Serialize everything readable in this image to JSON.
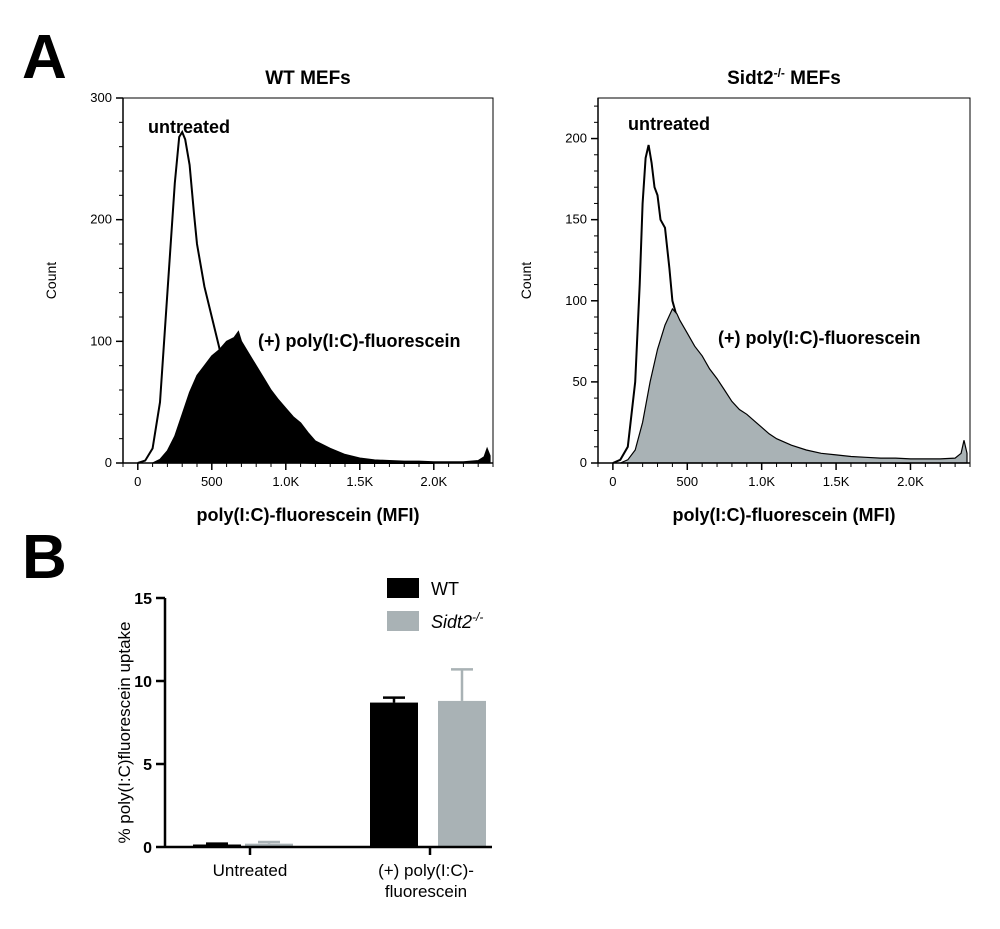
{
  "figure": {
    "panel_a_label": "A",
    "panel_b_label": "B"
  },
  "chart_data": [
    {
      "type": "area",
      "title": "WT MEFs",
      "title_sup": "",
      "xlabel": "poly(I:C)-fluorescein (MFI)",
      "ylabel": "Count",
      "xlim": [
        -100,
        2400
      ],
      "ylim": [
        0,
        300
      ],
      "x_ticks": [
        0,
        500,
        1000,
        1500,
        2000
      ],
      "x_tick_labels": [
        "0",
        "500",
        "1.0K",
        "1.5K",
        "2.0K"
      ],
      "y_ticks": [
        0,
        100,
        200,
        300
      ],
      "y_tick_labels": [
        "0",
        "100",
        "200",
        "300"
      ],
      "annotations": [
        "untreated",
        "(+) poly(I:C)-fluorescein"
      ],
      "series": [
        {
          "name": "untreated",
          "style": "outline",
          "color": "#000000",
          "x": [
            0,
            50,
            100,
            150,
            200,
            250,
            280,
            300,
            320,
            350,
            380,
            400,
            450,
            500,
            550,
            600,
            650,
            700,
            750,
            800,
            900,
            1000,
            1200,
            2000
          ],
          "y": [
            0,
            2,
            12,
            50,
            140,
            230,
            268,
            272,
            266,
            245,
            205,
            180,
            145,
            120,
            95,
            65,
            45,
            30,
            18,
            10,
            4,
            1,
            0,
            0
          ]
        },
        {
          "name": "(+) poly(I:C)-fluorescein",
          "style": "filled",
          "color": "#000000",
          "x": [
            100,
            150,
            200,
            250,
            300,
            350,
            400,
            450,
            500,
            550,
            600,
            650,
            680,
            700,
            750,
            800,
            850,
            900,
            950,
            1000,
            1050,
            1100,
            1150,
            1200,
            1300,
            1400,
            1500,
            1600,
            1700,
            1800,
            1900,
            2000,
            2100,
            2200,
            2300,
            2340,
            2360,
            2380
          ],
          "y": [
            0,
            3,
            10,
            22,
            40,
            58,
            72,
            80,
            88,
            93,
            100,
            103,
            108,
            100,
            90,
            80,
            70,
            60,
            52,
            45,
            38,
            33,
            25,
            18,
            12,
            7,
            4,
            2.5,
            2,
            1.5,
            1.5,
            1,
            1,
            1,
            2,
            5,
            12,
            6
          ]
        }
      ]
    },
    {
      "type": "area",
      "title": "Sidt2",
      "title_sup": "-/-",
      "title_suffix": " MEFs",
      "xlabel": "poly(I:C)-fluorescein (MFI)",
      "ylabel": "Count",
      "xlim": [
        -100,
        2400
      ],
      "ylim": [
        0,
        225
      ],
      "x_ticks": [
        0,
        500,
        1000,
        1500,
        2000
      ],
      "x_tick_labels": [
        "0",
        "500",
        "1.0K",
        "1.5K",
        "2.0K"
      ],
      "y_ticks": [
        0,
        50,
        100,
        150,
        200
      ],
      "y_tick_labels": [
        "0",
        "50",
        "100",
        "150",
        "200"
      ],
      "annotations": [
        "untreated",
        "(+) poly(I:C)-fluorescein"
      ],
      "series": [
        {
          "name": "untreated",
          "style": "outline",
          "color": "#000000",
          "x": [
            0,
            50,
            100,
            150,
            180,
            200,
            220,
            240,
            260,
            280,
            300,
            320,
            350,
            380,
            400,
            430,
            450,
            480,
            500,
            550,
            600,
            700,
            800,
            1000,
            2000
          ],
          "y": [
            0,
            2,
            10,
            50,
            110,
            160,
            188,
            196,
            185,
            170,
            165,
            150,
            145,
            120,
            100,
            90,
            80,
            70,
            55,
            40,
            30,
            18,
            8,
            2,
            0
          ]
        },
        {
          "name": "(+) poly(I:C)-fluorescein",
          "style": "filled",
          "color": "#a9b2b5",
          "x": [
            50,
            100,
            150,
            200,
            250,
            300,
            350,
            400,
            430,
            450,
            500,
            550,
            600,
            650,
            700,
            750,
            800,
            850,
            900,
            950,
            1000,
            1050,
            1100,
            1200,
            1300,
            1400,
            1500,
            1600,
            1700,
            1800,
            1900,
            2000,
            2100,
            2200,
            2300,
            2340,
            2360,
            2380
          ],
          "y": [
            0,
            2,
            8,
            25,
            50,
            70,
            85,
            95,
            92,
            88,
            80,
            72,
            66,
            58,
            52,
            45,
            38,
            33,
            30,
            26,
            22,
            18,
            15,
            11,
            8,
            6,
            5,
            4,
            3.5,
            3,
            3,
            2.5,
            2.5,
            2.5,
            3,
            6,
            14,
            6
          ]
        }
      ]
    },
    {
      "type": "bar",
      "title": "",
      "categories": [
        "Untreated",
        "(+) poly(I:C)-fluorescein"
      ],
      "category_lines": [
        [
          "Untreated"
        ],
        [
          "(+) poly(I:C)-",
          "fluorescein"
        ]
      ],
      "xlabel": "",
      "ylabel": "% poly(I:C)fluorescein uptake",
      "ylim": [
        0,
        15
      ],
      "y_ticks": [
        0,
        5,
        10,
        15
      ],
      "y_tick_labels": [
        "0",
        "5",
        "10",
        "15"
      ],
      "legend_position": "top-right",
      "series": [
        {
          "name": "WT",
          "name_sup": "",
          "color": "#000000",
          "values": [
            0.15,
            8.7
          ],
          "errors": [
            0.05,
            0.3
          ]
        },
        {
          "name": "Sidt2",
          "name_sup": "-/-",
          "color": "#a9b2b5",
          "values": [
            0.2,
            8.8
          ],
          "errors": [
            0.1,
            1.9
          ]
        }
      ]
    }
  ]
}
